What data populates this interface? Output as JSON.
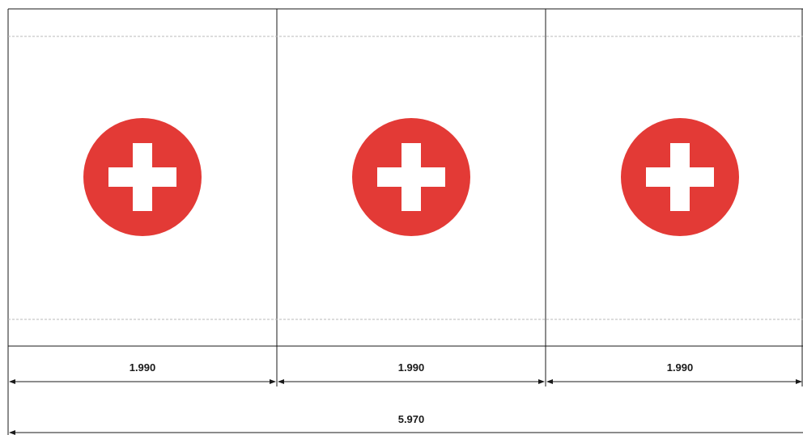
{
  "panels": [
    {
      "icon": "plus-circle-icon",
      "width_label": "1.990"
    },
    {
      "icon": "plus-circle-icon",
      "width_label": "1.990"
    },
    {
      "icon": "plus-circle-icon",
      "width_label": "1.990"
    }
  ],
  "total_width_label": "5.970",
  "colors": {
    "icon_fill": "#e33a36",
    "icon_cross": "#ffffff",
    "outline": "#1a1a1a",
    "guide": "#b8b8b8"
  }
}
